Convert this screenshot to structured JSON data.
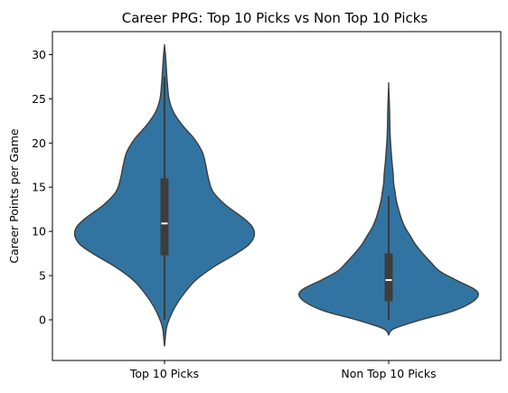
{
  "chart_data": {
    "type": "violin",
    "title": "Career PPG: Top 10 Picks vs Non Top 10 Picks",
    "xlabel": "",
    "ylabel": "Career Points per Game",
    "categories": [
      "Top 10 Picks",
      "Non Top 10 Picks"
    ],
    "ylim": [
      -4.6,
      32.6
    ],
    "yticks": [
      0,
      5,
      10,
      15,
      20,
      25,
      30
    ],
    "grid": false,
    "legend": "none",
    "colors": {
      "fill": "#3274a1",
      "edge": "#3d3d3d",
      "box": "#3d3d3d",
      "median": "#ffffff"
    },
    "violins": [
      {
        "category": "Top 10 Picks",
        "y_min": -3.0,
        "y_max": 31.0,
        "quartiles": [
          7.3,
          10.9,
          16.0
        ],
        "whiskers": [
          0.0,
          27.5
        ],
        "density_profile": [
          [
            -3.0,
            0.0
          ],
          [
            -1.0,
            0.02
          ],
          [
            0.0,
            0.05
          ],
          [
            1.5,
            0.12
          ],
          [
            3.0,
            0.22
          ],
          [
            4.5,
            0.35
          ],
          [
            6.0,
            0.55
          ],
          [
            7.5,
            0.8
          ],
          [
            8.5,
            0.94
          ],
          [
            9.5,
            1.0
          ],
          [
            10.5,
            0.98
          ],
          [
            11.5,
            0.88
          ],
          [
            13.0,
            0.68
          ],
          [
            14.5,
            0.54
          ],
          [
            16.0,
            0.49
          ],
          [
            17.5,
            0.46
          ],
          [
            19.0,
            0.42
          ],
          [
            20.5,
            0.33
          ],
          [
            22.0,
            0.2
          ],
          [
            23.5,
            0.1
          ],
          [
            25.0,
            0.05
          ],
          [
            27.0,
            0.03
          ],
          [
            28.5,
            0.02
          ],
          [
            30.0,
            0.01
          ],
          [
            31.0,
            0.0
          ]
        ]
      },
      {
        "category": "Non Top 10 Picks",
        "y_min": -1.7,
        "y_max": 26.5,
        "quartiles": [
          2.1,
          4.5,
          7.5
        ],
        "whiskers": [
          0.0,
          14.0
        ],
        "density_profile": [
          [
            -1.7,
            0.0
          ],
          [
            -1.0,
            0.06
          ],
          [
            0.0,
            0.36
          ],
          [
            1.0,
            0.72
          ],
          [
            2.0,
            0.93
          ],
          [
            2.8,
            1.0
          ],
          [
            3.5,
            0.95
          ],
          [
            4.5,
            0.75
          ],
          [
            5.5,
            0.57
          ],
          [
            6.5,
            0.47
          ],
          [
            7.5,
            0.38
          ],
          [
            8.5,
            0.3
          ],
          [
            9.5,
            0.24
          ],
          [
            10.5,
            0.18
          ],
          [
            11.5,
            0.14
          ],
          [
            12.5,
            0.11
          ],
          [
            13.5,
            0.085
          ],
          [
            14.5,
            0.07
          ],
          [
            15.5,
            0.055
          ],
          [
            16.5,
            0.05
          ],
          [
            17.5,
            0.04
          ],
          [
            19.0,
            0.028
          ],
          [
            20.5,
            0.018
          ],
          [
            22.0,
            0.013
          ],
          [
            24.0,
            0.009
          ],
          [
            26.5,
            0.0
          ]
        ]
      }
    ]
  }
}
